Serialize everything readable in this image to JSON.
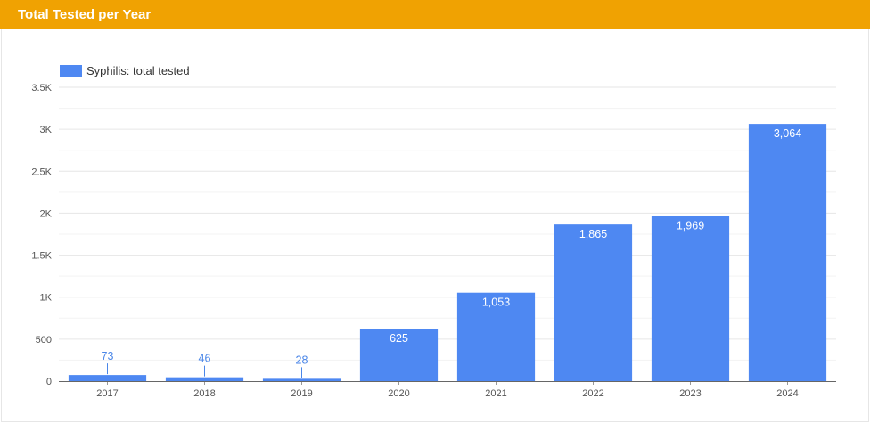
{
  "header": {
    "title": "Total Tested per Year"
  },
  "colors": {
    "header_bg": "#f0a202",
    "bar": "#4e88f2"
  },
  "chart_data": {
    "type": "bar",
    "title": "Total Tested per Year",
    "categories": [
      "2017",
      "2018",
      "2019",
      "2020",
      "2021",
      "2022",
      "2023",
      "2024"
    ],
    "series": [
      {
        "name": "Syphilis: total tested",
        "values": [
          73,
          46,
          28,
          625,
          1053,
          1865,
          1969,
          3064
        ],
        "labels": [
          "73",
          "46",
          "28",
          "625",
          "1,053",
          "1,865",
          "1,969",
          "3,064"
        ]
      }
    ],
    "ylim": [
      0,
      3500
    ],
    "yticks": [
      0,
      500,
      1000,
      1500,
      2000,
      2500,
      3000,
      3500
    ],
    "ytick_labels": [
      "0",
      "500",
      "1K",
      "1.5K",
      "2K",
      "2.5K",
      "3K",
      "3.5K"
    ],
    "grid": true,
    "legend": "top-left"
  }
}
